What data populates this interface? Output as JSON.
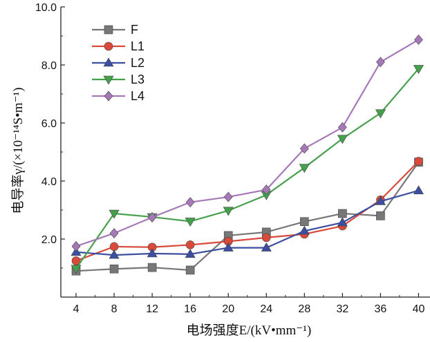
{
  "chart_data": {
    "type": "line",
    "xlabel": "电场强度E/(kV•mm⁻¹)",
    "ylabel": "电导率γ/(×10⁻¹⁴S•m⁻¹)",
    "x": [
      4,
      8,
      12,
      16,
      20,
      24,
      28,
      32,
      36,
      40
    ],
    "xticks": [
      "4",
      "8",
      "12",
      "16",
      "20",
      "24",
      "28",
      "32",
      "36",
      "40"
    ],
    "yticks": [
      "2.0",
      "4.0",
      "6.0",
      "8.0",
      "10.0"
    ],
    "xlim": [
      2.4,
      41.2
    ],
    "ylim": [
      0,
      10
    ],
    "grid": false,
    "legend_position": "top-left",
    "series": [
      {
        "name": "F",
        "color": "#777777",
        "marker": "square",
        "values": [
          0.9,
          0.97,
          1.02,
          0.93,
          2.12,
          2.24,
          2.6,
          2.88,
          2.8,
          4.65
        ]
      },
      {
        "name": "L1",
        "color": "#d94a3a",
        "marker": "circle",
        "values": [
          1.25,
          1.74,
          1.72,
          1.8,
          1.92,
          2.05,
          2.17,
          2.45,
          3.35,
          4.68
        ]
      },
      {
        "name": "L2",
        "color": "#3b4ea0",
        "marker": "triangle-up",
        "values": [
          1.55,
          1.45,
          1.5,
          1.48,
          1.7,
          1.7,
          2.28,
          2.57,
          3.3,
          3.67
        ]
      },
      {
        "name": "L3",
        "color": "#45a04b",
        "marker": "triangle-down",
        "values": [
          0.98,
          2.88,
          2.76,
          2.61,
          2.98,
          3.52,
          4.46,
          5.46,
          6.34,
          7.87
        ]
      },
      {
        "name": "L4",
        "color": "#a678b8",
        "marker": "diamond",
        "values": [
          1.75,
          2.2,
          2.75,
          3.27,
          3.45,
          3.7,
          5.12,
          5.85,
          8.1,
          8.87
        ]
      }
    ]
  }
}
